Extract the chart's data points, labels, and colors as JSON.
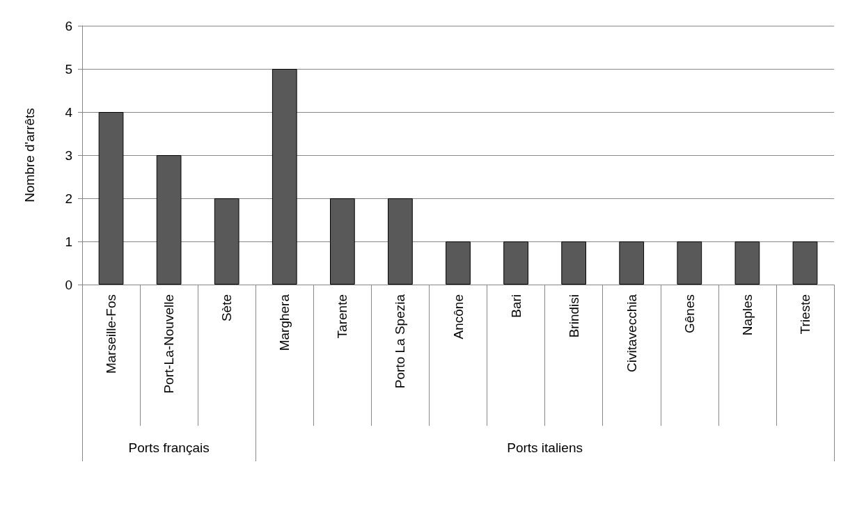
{
  "chart_data": {
    "type": "bar",
    "ylabel": "Nombre d'arrêts",
    "categories": [
      "Marseille-Fos",
      "Port-La-Nouvelle",
      "Sète",
      "Marghera",
      "Tarente",
      "Porto La Spezia",
      "Ancône",
      "Bari",
      "Brindisi",
      "Civitavecchia",
      "Gênes",
      "Naples",
      "Trieste"
    ],
    "values": [
      4,
      3,
      2,
      5,
      2,
      2,
      1,
      1,
      1,
      1,
      1,
      1,
      1
    ],
    "color": "#595959",
    "ylim": [
      0,
      6
    ],
    "yticks": [
      0,
      1,
      2,
      3,
      4,
      5,
      6
    ],
    "grid": "y",
    "annotations": [
      "Ports français",
      "Ports italiens"
    ]
  }
}
